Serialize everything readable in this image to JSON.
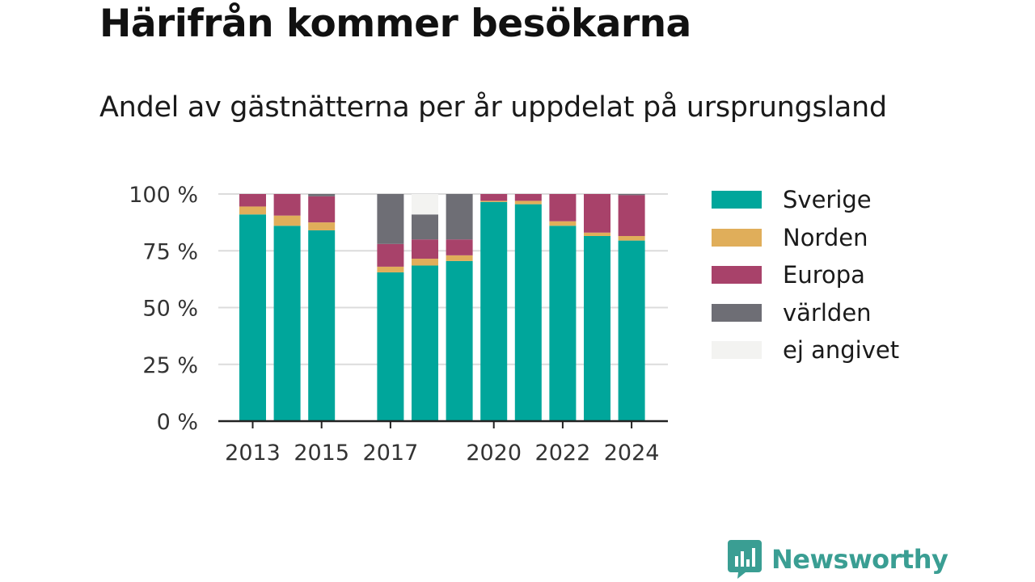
{
  "header": {
    "title": "Härifrån kommer besökarna",
    "subtitle": "Andel av gästnätterna per år uppdelat på ursprungsland"
  },
  "branding": {
    "name": "Newsworthy",
    "color": "#3a9e93",
    "icon": "bar-chart-badge-icon"
  },
  "chart_data": {
    "type": "bar",
    "stacked": true,
    "categories": [
      2013,
      2014,
      2015,
      2016,
      2017,
      2018,
      2019,
      2020,
      2021,
      2022,
      2023,
      2024
    ],
    "tick_labels": [
      "2013",
      "2015",
      "2017",
      "2020",
      "2022",
      "2024"
    ],
    "tick_years": [
      2013,
      2015,
      2017,
      2020,
      2022,
      2024
    ],
    "series": [
      {
        "name": "Sverige",
        "color": "#00a69b",
        "values": [
          91,
          86,
          84,
          null,
          65.5,
          68.5,
          70.5,
          96.5,
          95.5,
          86,
          81.5,
          79.5
        ]
      },
      {
        "name": "Norden",
        "color": "#e0ae5a",
        "values": [
          3.5,
          4.5,
          3.5,
          null,
          2.5,
          3,
          2.5,
          0.5,
          1.5,
          2,
          1.5,
          2
        ]
      },
      {
        "name": "Europa",
        "color": "#a8426a",
        "values": [
          5.5,
          9.5,
          11.5,
          null,
          10,
          8.5,
          7,
          3,
          3,
          12,
          17,
          18
        ]
      },
      {
        "name": "världen",
        "color": "#6e6e75",
        "values": [
          0,
          0,
          1,
          null,
          22,
          11,
          20,
          0,
          0,
          0,
          0,
          0.5
        ]
      },
      {
        "name": "ej angivet",
        "color": "#f3f3f1",
        "values": [
          0,
          0,
          0,
          null,
          0,
          9,
          0,
          0,
          0,
          0,
          0,
          0
        ]
      }
    ],
    "y_ticks": [
      "0 %",
      "25 %",
      "50 %",
      "75 %",
      "100 %"
    ],
    "y_tick_values": [
      0,
      25,
      50,
      75,
      100
    ],
    "ylim": [
      0,
      100
    ],
    "grid": true,
    "legend_position": "right",
    "colors": {
      "grid": "#dcdcdc",
      "axis": "#222222",
      "tick_text": "#333333"
    }
  }
}
